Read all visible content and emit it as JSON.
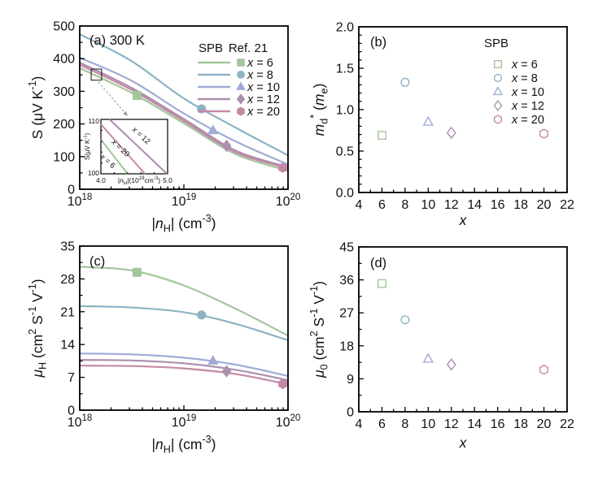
{
  "figure": {
    "background": "#ffffff",
    "frame_color": "#000000"
  },
  "colors": {
    "x6": "#a3c69c",
    "x8": "#8db3c4",
    "x10": "#a0abd6",
    "x12": "#ab8fad",
    "x20": "#c489a6",
    "annotation_gray": "#9a9a9a"
  },
  "chart_data": [
    {
      "id": "a",
      "type": "line",
      "title": "(a) 300 K",
      "xlabel": "|~{n}_{H}| (cm^{-3})",
      "ylabel": "S (μV K^{-1})",
      "xscale": "log",
      "xlim_log": [
        18,
        20
      ],
      "ylim": [
        0,
        500
      ],
      "xticks": [
        {
          "v": 18,
          "label": "10^{18}"
        },
        {
          "v": 19,
          "label": "10^{19}"
        },
        {
          "v": 20,
          "label": "10^{20}"
        }
      ],
      "xminors": [
        18.301,
        18.477,
        18.602,
        18.699,
        18.778,
        18.845,
        18.903,
        18.954,
        19.301,
        19.477,
        19.602,
        19.699,
        19.778,
        19.845,
        19.903,
        19.954
      ],
      "yticks": [
        {
          "v": 0,
          "label": "0"
        },
        {
          "v": 100,
          "label": "100"
        },
        {
          "v": 200,
          "label": "200"
        },
        {
          "v": 300,
          "label": "300"
        },
        {
          "v": 400,
          "label": "400"
        },
        {
          "v": 500,
          "label": "500"
        }
      ],
      "yminors": [
        50,
        150,
        250,
        350,
        450
      ],
      "legend": {
        "headers": [
          "SPB",
          "Ref. 21"
        ],
        "entries": [
          {
            "key": "x6",
            "label": "~{x} = 6",
            "color": "#a3c69c",
            "marker": "square"
          },
          {
            "key": "x8",
            "label": "~{x} = 8",
            "color": "#8db3c4",
            "marker": "circle"
          },
          {
            "key": "x10",
            "label": "~{x} = 10",
            "color": "#a0abd6",
            "marker": "triangle"
          },
          {
            "key": "x12",
            "label": "~{x} = 12",
            "color": "#ab8fad",
            "marker": "diamond"
          },
          {
            "key": "x20",
            "label": "~{x} = 20",
            "color": "#c489a6",
            "marker": "hexagon"
          }
        ]
      },
      "series": [
        {
          "key": "x6",
          "name": "x = 6",
          "color": "#a3c69c",
          "marker": "square",
          "line": [
            [
              18,
              371
            ],
            [
              18.5,
              295
            ],
            [
              19,
              202
            ],
            [
              19.5,
              107
            ],
            [
              20,
              57
            ]
          ],
          "ref_point": [
            18.55,
            287
          ]
        },
        {
          "key": "x8",
          "name": "x = 8",
          "color": "#8db3c4",
          "marker": "circle",
          "line": [
            [
              18,
              475
            ],
            [
              18.5,
              392
            ],
            [
              19,
              278
            ],
            [
              19.5,
              188
            ],
            [
              20,
              104
            ]
          ],
          "ref_point": [
            19.17,
            246
          ]
        },
        {
          "key": "x10",
          "name": "x = 10",
          "color": "#a0abd6",
          "marker": "triangle",
          "line": [
            [
              18,
              403
            ],
            [
              18.5,
              332
            ],
            [
              19,
              232
            ],
            [
              19.5,
              146
            ],
            [
              20,
              76
            ]
          ],
          "ref_point": [
            19.28,
            180
          ]
        },
        {
          "key": "x12",
          "name": "x = 12",
          "color": "#ab8fad",
          "marker": "diamond",
          "line": [
            [
              18,
              388
            ],
            [
              18.5,
              310
            ],
            [
              19,
              215
            ],
            [
              19.5,
              118
            ],
            [
              20,
              68
            ]
          ],
          "ref_point": [
            19.41,
            133
          ]
        },
        {
          "key": "x20",
          "name": "x = 20",
          "color": "#c489a6",
          "marker": "hexagon",
          "line": [
            [
              18,
              381
            ],
            [
              18.5,
              304
            ],
            [
              19,
              209
            ],
            [
              19.5,
              113
            ],
            [
              20,
              64
            ]
          ],
          "ref_point": [
            19.95,
            66
          ]
        }
      ],
      "inset": {
        "ylabel": "S(μV K^{-1})",
        "xlabel": "|~{n}_{H}|(10^{19}cm^{-3})",
        "xlim": [
          4.0,
          5.0
        ],
        "ylim": [
          100,
          110
        ],
        "xtick_labels": [
          "4.0",
          "5.0"
        ],
        "ytick_labels": [
          "110",
          "100"
        ],
        "xminors": [
          4.2,
          4.4,
          4.6,
          4.8
        ],
        "yminors": [
          102,
          104,
          106,
          108
        ],
        "lines": [
          {
            "key": "x12",
            "label": "~{x} = 12",
            "color": "#ab8fad",
            "from": [
              4.13,
              110
            ],
            "to": [
              4.99,
              100
            ],
            "label_at": [
              4.58,
              106.7
            ]
          },
          {
            "key": "x20",
            "label": "~{x} = 20",
            "color": "#c489a6",
            "from": [
              4.0,
              109.1
            ],
            "to": [
              4.66,
              100
            ],
            "label_at": [
              4.27,
              104.4
            ]
          },
          {
            "key": "x6",
            "label": "~{x} = 6",
            "color": "#a3c69c",
            "from": [
              4.0,
              106.3
            ],
            "to": [
              4.4,
              100
            ],
            "label_at": [
              4.08,
              102.0
            ]
          }
        ]
      },
      "zoom_box": {
        "x": [
          18.11,
          18.21
        ],
        "y": [
          334,
          368
        ]
      }
    },
    {
      "id": "b",
      "type": "scatter",
      "title": "(b)",
      "xlabel": "~{x}",
      "ylabel": "~{m}_{d}^{*} (~{m}_{e})",
      "xlim": [
        4,
        22
      ],
      "ylim": [
        0,
        2
      ],
      "xticks": [
        {
          "v": 4,
          "label": "4"
        },
        {
          "v": 6,
          "label": "6"
        },
        {
          "v": 8,
          "label": "8"
        },
        {
          "v": 10,
          "label": "10"
        },
        {
          "v": 12,
          "label": "12"
        },
        {
          "v": 14,
          "label": "14"
        },
        {
          "v": 16,
          "label": "16"
        },
        {
          "v": 18,
          "label": "18"
        },
        {
          "v": 20,
          "label": "20"
        },
        {
          "v": 22,
          "label": "22"
        }
      ],
      "xminors": [
        5,
        7,
        9,
        11,
        13,
        15,
        17,
        19,
        21
      ],
      "yticks": [
        {
          "v": 0,
          "label": "0.0"
        },
        {
          "v": 0.5,
          "label": "0.5"
        },
        {
          "v": 1,
          "label": "1.0"
        },
        {
          "v": 1.5,
          "label": "1.5"
        },
        {
          "v": 2,
          "label": "2.0"
        }
      ],
      "yminors": [
        0.1,
        0.2,
        0.3,
        0.4,
        0.6,
        0.7,
        0.8,
        0.9,
        1.1,
        1.2,
        1.3,
        1.4,
        1.6,
        1.7,
        1.8,
        1.9
      ],
      "legend": {
        "headers": [
          "SPB"
        ],
        "entries": [
          {
            "key": "x6",
            "label": "~{x} = 6",
            "color": "#a3c69c",
            "marker": "square"
          },
          {
            "key": "x8",
            "label": "~{x} = 8",
            "color": "#8db3c4",
            "marker": "circle"
          },
          {
            "key": "x10",
            "label": "~{x} = 10",
            "color": "#a0abd6",
            "marker": "triangle"
          },
          {
            "key": "x12",
            "label": "~{x} = 12",
            "color": "#ab8fad",
            "marker": "diamond"
          },
          {
            "key": "x20",
            "label": "~{x} = 20",
            "color": "#c489a6",
            "marker": "hexagon"
          }
        ]
      },
      "points": [
        {
          "key": "x6",
          "x": 6,
          "y": 0.69,
          "marker": "square",
          "color": "#a3c69c"
        },
        {
          "key": "x8",
          "x": 8,
          "y": 1.33,
          "marker": "circle",
          "color": "#8db3c4"
        },
        {
          "key": "x10",
          "x": 10,
          "y": 0.85,
          "marker": "triangle",
          "color": "#a0abd6"
        },
        {
          "key": "x12",
          "x": 12,
          "y": 0.72,
          "marker": "diamond",
          "color": "#ab8fad"
        },
        {
          "key": "x20",
          "x": 20,
          "y": 0.71,
          "marker": "hexagon",
          "color": "#c489a6"
        }
      ]
    },
    {
      "id": "c",
      "type": "line",
      "title": "(c)",
      "xlabel": "|~{n}_{H}| (cm^{-3})",
      "ylabel": "~{μ}_{H} (cm^{2} S^{-1} V^{-1})",
      "xscale": "log",
      "xlim_log": [
        18,
        20
      ],
      "ylim": [
        0,
        35
      ],
      "xticks": [
        {
          "v": 18,
          "label": "10^{18}"
        },
        {
          "v": 19,
          "label": "10^{19}"
        },
        {
          "v": 20,
          "label": "10^{20}"
        }
      ],
      "xminors": [
        18.301,
        18.477,
        18.602,
        18.699,
        18.778,
        18.845,
        18.903,
        18.954,
        19.301,
        19.477,
        19.602,
        19.699,
        19.778,
        19.845,
        19.903,
        19.954
      ],
      "yticks": [
        {
          "v": 0,
          "label": "0"
        },
        {
          "v": 7,
          "label": "7"
        },
        {
          "v": 14,
          "label": "14"
        },
        {
          "v": 21,
          "label": "21"
        },
        {
          "v": 28,
          "label": "28"
        },
        {
          "v": 35,
          "label": "35"
        }
      ],
      "yminors": [
        3.5,
        10.5,
        17.5,
        24.5,
        31.5
      ],
      "series": [
        {
          "key": "x6",
          "name": "x = 6",
          "color": "#a3c69c",
          "marker": "square",
          "line": [
            [
              18,
              30.6
            ],
            [
              18.5,
              29.8
            ],
            [
              19,
              26.6
            ],
            [
              19.5,
              21.6
            ],
            [
              20,
              15.9
            ]
          ],
          "ref_point": [
            18.55,
            29.4
          ]
        },
        {
          "key": "x8",
          "name": "x = 8",
          "color": "#8db3c4",
          "marker": "circle",
          "line": [
            [
              18,
              22.2
            ],
            [
              18.5,
              21.9
            ],
            [
              19,
              20.9
            ],
            [
              19.5,
              18.4
            ],
            [
              20,
              14.9
            ]
          ],
          "ref_point": [
            19.17,
            20.3
          ]
        },
        {
          "key": "x10",
          "name": "x = 10",
          "color": "#a0abd6",
          "marker": "triangle",
          "line": [
            [
              18,
              12.1
            ],
            [
              18.5,
              11.9
            ],
            [
              19,
              11.2
            ],
            [
              19.5,
              9.7
            ],
            [
              20,
              7.3
            ]
          ],
          "ref_point": [
            19.28,
            10.5
          ]
        },
        {
          "key": "x12",
          "name": "x = 12",
          "color": "#ab8fad",
          "marker": "diamond",
          "line": [
            [
              18,
              10.7
            ],
            [
              18.5,
              10.6
            ],
            [
              19,
              10.0
            ],
            [
              19.5,
              8.6
            ],
            [
              20,
              6.4
            ]
          ],
          "ref_point": [
            19.41,
            8.3
          ]
        },
        {
          "key": "x20",
          "name": "x = 20",
          "color": "#c489a6",
          "marker": "hexagon",
          "line": [
            [
              18,
              9.5
            ],
            [
              18.5,
              9.4
            ],
            [
              19,
              8.9
            ],
            [
              19.5,
              7.7
            ],
            [
              20,
              5.5
            ]
          ],
          "ref_point": [
            19.95,
            5.6
          ]
        }
      ]
    },
    {
      "id": "d",
      "type": "scatter",
      "title": "(d)",
      "xlabel": "~{x}",
      "ylabel": "~{μ}_{0} (cm^{2} S^{-1} V^{-1})",
      "xlim": [
        4,
        22
      ],
      "ylim": [
        0,
        45
      ],
      "xticks": [
        {
          "v": 4,
          "label": "4"
        },
        {
          "v": 6,
          "label": "6"
        },
        {
          "v": 8,
          "label": "8"
        },
        {
          "v": 10,
          "label": "10"
        },
        {
          "v": 12,
          "label": "12"
        },
        {
          "v": 14,
          "label": "14"
        },
        {
          "v": 16,
          "label": "16"
        },
        {
          "v": 18,
          "label": "18"
        },
        {
          "v": 20,
          "label": "20"
        },
        {
          "v": 22,
          "label": "22"
        }
      ],
      "xminors": [
        5,
        7,
        9,
        11,
        13,
        15,
        17,
        19,
        21
      ],
      "yticks": [
        {
          "v": 0,
          "label": "0"
        },
        {
          "v": 9,
          "label": "9"
        },
        {
          "v": 18,
          "label": "18"
        },
        {
          "v": 27,
          "label": "27"
        },
        {
          "v": 36,
          "label": "36"
        },
        {
          "v": 45,
          "label": "45"
        }
      ],
      "yminors": [
        4.5,
        13.5,
        22.5,
        31.5,
        40.5
      ],
      "points": [
        {
          "key": "x6",
          "x": 6,
          "y": 35.0,
          "marker": "square",
          "color": "#a3c69c"
        },
        {
          "key": "x8",
          "x": 8,
          "y": 25.1,
          "marker": "circle",
          "color": "#8db3c4"
        },
        {
          "key": "x10",
          "x": 10,
          "y": 14.4,
          "marker": "triangle",
          "color": "#a0abd6"
        },
        {
          "key": "x12",
          "x": 12,
          "y": 12.9,
          "marker": "diamond",
          "color": "#ab8fad"
        },
        {
          "key": "x20",
          "x": 20,
          "y": 11.5,
          "marker": "hexagon",
          "color": "#c489a6"
        }
      ]
    }
  ]
}
